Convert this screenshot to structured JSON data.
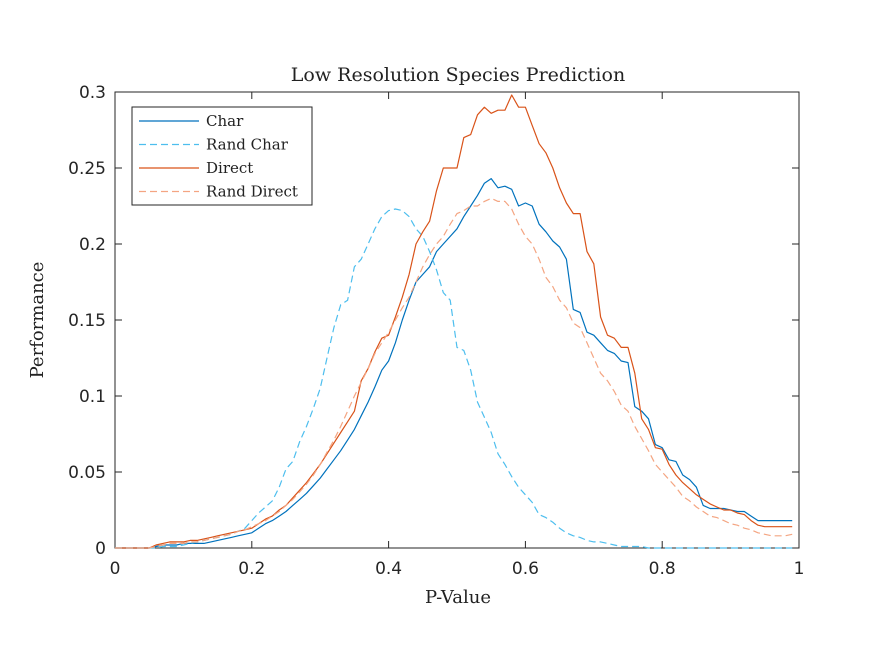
{
  "chart_data": {
    "type": "line",
    "title": "Low Resolution Species Prediction",
    "xlabel": "P-Value",
    "ylabel": "Performance",
    "xlim": [
      0,
      1
    ],
    "ylim": [
      0,
      0.3
    ],
    "xticks": [
      0,
      0.2,
      0.4,
      0.6,
      0.8,
      1
    ],
    "xtick_labels": [
      "0",
      "0.2",
      "0.4",
      "0.6",
      "0.8",
      "1"
    ],
    "yticks": [
      0,
      0.05,
      0.1,
      0.15,
      0.2,
      0.25,
      0.3
    ],
    "ytick_labels": [
      "0",
      "0.05",
      "0.1",
      "0.15",
      "0.2",
      "0.25",
      "0.3"
    ],
    "grid": false,
    "legend_position": "top-left",
    "x": [
      0,
      0.01,
      0.02,
      0.03,
      0.04,
      0.05,
      0.06,
      0.07,
      0.08,
      0.09,
      0.1,
      0.11,
      0.12,
      0.13,
      0.14,
      0.15,
      0.16,
      0.17,
      0.18,
      0.19,
      0.2,
      0.21,
      0.22,
      0.23,
      0.24,
      0.25,
      0.26,
      0.27,
      0.28,
      0.29,
      0.3,
      0.31,
      0.32,
      0.33,
      0.34,
      0.35,
      0.36,
      0.37,
      0.38,
      0.39,
      0.4,
      0.41,
      0.42,
      0.43,
      0.44,
      0.45,
      0.46,
      0.47,
      0.48,
      0.49,
      0.5,
      0.51,
      0.52,
      0.53,
      0.54,
      0.55,
      0.56,
      0.57,
      0.58,
      0.59,
      0.6,
      0.61,
      0.62,
      0.63,
      0.64,
      0.65,
      0.66,
      0.67,
      0.68,
      0.69,
      0.7,
      0.71,
      0.72,
      0.73,
      0.74,
      0.75,
      0.76,
      0.77,
      0.78,
      0.79,
      0.8,
      0.81,
      0.82,
      0.83,
      0.84,
      0.85,
      0.86,
      0.87,
      0.88,
      0.89,
      0.9,
      0.91,
      0.92,
      0.93,
      0.94,
      0.95,
      0.96,
      0.97,
      0.98,
      0.99
    ],
    "series": [
      {
        "name": "Char",
        "color": "#0072BD",
        "dash": "solid",
        "values": [
          0,
          0,
          0,
          0,
          0,
          0,
          0.001,
          0.002,
          0.002,
          0.002,
          0.003,
          0.003,
          0.003,
          0.003,
          0.004,
          0.005,
          0.006,
          0.007,
          0.008,
          0.009,
          0.01,
          0.013,
          0.016,
          0.018,
          0.021,
          0.024,
          0.028,
          0.032,
          0.036,
          0.041,
          0.046,
          0.052,
          0.058,
          0.064,
          0.071,
          0.078,
          0.087,
          0.096,
          0.106,
          0.117,
          0.123,
          0.135,
          0.15,
          0.163,
          0.175,
          0.18,
          0.185,
          0.195,
          0.2,
          0.205,
          0.21,
          0.218,
          0.225,
          0.232,
          0.24,
          0.243,
          0.237,
          0.238,
          0.236,
          0.225,
          0.227,
          0.225,
          0.213,
          0.208,
          0.202,
          0.198,
          0.19,
          0.157,
          0.155,
          0.142,
          0.14,
          0.135,
          0.13,
          0.128,
          0.123,
          0.122,
          0.093,
          0.09,
          0.085,
          0.068,
          0.066,
          0.058,
          0.057,
          0.048,
          0.045,
          0.04,
          0.028,
          0.026,
          0.026,
          0.026,
          0.025,
          0.024,
          0.024,
          0.021,
          0.018,
          0.018,
          0.018,
          0.018,
          0.018,
          0.018
        ]
      },
      {
        "name": "Rand Char",
        "color": "#4DBEEE",
        "dash": "dashed",
        "values": [
          0,
          0,
          0,
          0,
          0,
          0,
          0,
          0.001,
          0.001,
          0.001,
          0.002,
          0.003,
          0.004,
          0.005,
          0.006,
          0.007,
          0.008,
          0.009,
          0.011,
          0.013,
          0.018,
          0.023,
          0.027,
          0.031,
          0.04,
          0.052,
          0.057,
          0.07,
          0.08,
          0.092,
          0.105,
          0.125,
          0.145,
          0.16,
          0.163,
          0.185,
          0.19,
          0.2,
          0.21,
          0.218,
          0.222,
          0.223,
          0.222,
          0.218,
          0.21,
          0.205,
          0.195,
          0.183,
          0.168,
          0.163,
          0.132,
          0.13,
          0.117,
          0.096,
          0.086,
          0.076,
          0.062,
          0.055,
          0.047,
          0.04,
          0.035,
          0.03,
          0.022,
          0.02,
          0.017,
          0.013,
          0.01,
          0.008,
          0.007,
          0.005,
          0.004,
          0.004,
          0.003,
          0.002,
          0.001,
          0.001,
          0.001,
          0.001,
          0,
          0,
          0,
          0,
          0,
          0,
          0,
          0,
          0,
          0,
          0,
          0,
          0,
          0,
          0,
          0,
          0,
          0,
          0,
          0,
          0,
          0
        ]
      },
      {
        "name": "Direct",
        "color": "#D95319",
        "dash": "solid",
        "values": [
          0,
          0,
          0,
          0,
          0,
          0,
          0.002,
          0.003,
          0.004,
          0.004,
          0.004,
          0.005,
          0.005,
          0.006,
          0.007,
          0.008,
          0.009,
          0.01,
          0.011,
          0.012,
          0.013,
          0.016,
          0.019,
          0.021,
          0.025,
          0.028,
          0.033,
          0.038,
          0.043,
          0.049,
          0.055,
          0.062,
          0.069,
          0.076,
          0.083,
          0.09,
          0.11,
          0.118,
          0.129,
          0.138,
          0.14,
          0.152,
          0.165,
          0.18,
          0.2,
          0.208,
          0.215,
          0.235,
          0.25,
          0.25,
          0.25,
          0.27,
          0.272,
          0.285,
          0.29,
          0.286,
          0.288,
          0.288,
          0.298,
          0.29,
          0.29,
          0.278,
          0.266,
          0.26,
          0.25,
          0.237,
          0.227,
          0.22,
          0.22,
          0.195,
          0.187,
          0.152,
          0.14,
          0.138,
          0.132,
          0.132,
          0.115,
          0.085,
          0.078,
          0.066,
          0.065,
          0.055,
          0.048,
          0.043,
          0.039,
          0.035,
          0.032,
          0.029,
          0.027,
          0.025,
          0.025,
          0.023,
          0.022,
          0.018,
          0.015,
          0.014,
          0.014,
          0.014,
          0.014,
          0.014
        ]
      },
      {
        "name": "Rand Direct",
        "color": "#F4A582",
        "dash": "dashed",
        "values": [
          0,
          0,
          0,
          0,
          0,
          0,
          0.001,
          0.002,
          0.003,
          0.003,
          0.003,
          0.004,
          0.004,
          0.005,
          0.006,
          0.007,
          0.008,
          0.009,
          0.011,
          0.012,
          0.014,
          0.016,
          0.018,
          0.021,
          0.024,
          0.028,
          0.032,
          0.037,
          0.042,
          0.048,
          0.055,
          0.063,
          0.071,
          0.08,
          0.09,
          0.1,
          0.109,
          0.118,
          0.128,
          0.135,
          0.142,
          0.15,
          0.158,
          0.165,
          0.175,
          0.185,
          0.193,
          0.2,
          0.205,
          0.213,
          0.22,
          0.222,
          0.225,
          0.225,
          0.228,
          0.23,
          0.228,
          0.228,
          0.223,
          0.213,
          0.205,
          0.2,
          0.19,
          0.178,
          0.172,
          0.163,
          0.158,
          0.148,
          0.145,
          0.135,
          0.125,
          0.115,
          0.11,
          0.103,
          0.094,
          0.09,
          0.08,
          0.072,
          0.064,
          0.055,
          0.05,
          0.045,
          0.04,
          0.034,
          0.031,
          0.027,
          0.024,
          0.021,
          0.02,
          0.018,
          0.016,
          0.015,
          0.013,
          0.012,
          0.01,
          0.009,
          0.008,
          0.008,
          0.008,
          0.009
        ]
      }
    ]
  }
}
